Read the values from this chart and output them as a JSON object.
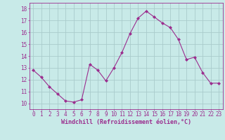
{
  "x": [
    0,
    1,
    2,
    3,
    4,
    5,
    6,
    7,
    8,
    9,
    10,
    11,
    12,
    13,
    14,
    15,
    16,
    17,
    18,
    19,
    20,
    21,
    22,
    23
  ],
  "y": [
    12.8,
    12.2,
    11.4,
    10.8,
    10.2,
    10.1,
    10.3,
    13.3,
    12.8,
    11.9,
    13.0,
    14.3,
    15.9,
    17.2,
    17.8,
    17.3,
    16.8,
    16.4,
    15.4,
    13.7,
    13.9,
    12.6,
    11.7,
    11.7
  ],
  "line_color": "#9B2D8E",
  "marker": "D",
  "marker_size": 2.0,
  "bg_color": "#C8EAE8",
  "grid_color": "#AACCCC",
  "xlabel": "Windchill (Refroidissement éolien,°C)",
  "xlim": [
    -0.5,
    23.5
  ],
  "ylim": [
    9.5,
    18.5
  ],
  "yticks": [
    10,
    11,
    12,
    13,
    14,
    15,
    16,
    17,
    18
  ],
  "xticks": [
    0,
    1,
    2,
    3,
    4,
    5,
    6,
    7,
    8,
    9,
    10,
    11,
    12,
    13,
    14,
    15,
    16,
    17,
    18,
    19,
    20,
    21,
    22,
    23
  ],
  "tick_fontsize": 5.5,
  "xlabel_fontsize": 6.0
}
